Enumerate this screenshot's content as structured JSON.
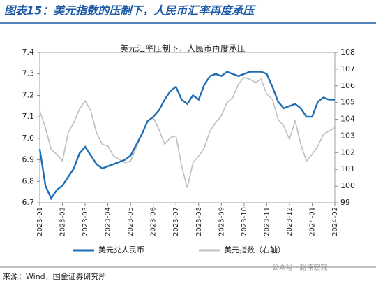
{
  "header": {
    "title": "图表15：美元指数的压制下，人民币汇率再度承压"
  },
  "chart_data": {
    "type": "line",
    "title": "美元汇率压制下，人民币再度承压",
    "categories": [
      "2023-01",
      null,
      null,
      null,
      "2023-02",
      null,
      null,
      null,
      "2023-03",
      null,
      null,
      null,
      "2023-04",
      null,
      null,
      null,
      "2023-05",
      null,
      null,
      null,
      "2023-06",
      null,
      null,
      null,
      "2023-07",
      null,
      null,
      null,
      "2023-08",
      null,
      null,
      null,
      "2023-09",
      null,
      null,
      null,
      "2023-10",
      null,
      null,
      null,
      "2023-11",
      null,
      null,
      null,
      "2023-12",
      null,
      null,
      null,
      "2024-01",
      null,
      null,
      null,
      "2024-02"
    ],
    "series": [
      {
        "name": "美元兑人民币",
        "color": "#1f6db5",
        "axis": "y",
        "values": [
          6.95,
          6.78,
          6.72,
          6.76,
          6.78,
          6.82,
          6.86,
          6.93,
          6.96,
          6.92,
          6.88,
          6.86,
          6.87,
          6.88,
          6.89,
          6.9,
          6.92,
          6.97,
          7.02,
          7.08,
          7.1,
          7.13,
          7.18,
          7.22,
          7.24,
          7.18,
          7.16,
          7.2,
          7.18,
          7.25,
          7.29,
          7.3,
          7.29,
          7.31,
          7.3,
          7.29,
          7.3,
          7.31,
          7.31,
          7.31,
          7.3,
          7.24,
          7.17,
          7.14,
          7.15,
          7.16,
          7.14,
          7.1,
          7.1,
          7.17,
          7.19,
          7.18,
          7.18
        ]
      },
      {
        "name": "美元指数（右轴）",
        "color": "#bfbfbf",
        "axis": "y2",
        "values": [
          104.5,
          103.5,
          102.2,
          101.9,
          101.5,
          103.2,
          103.8,
          104.6,
          105.1,
          104.5,
          103.2,
          102.5,
          102.4,
          101.8,
          101.6,
          101.4,
          101.5,
          102.3,
          103.1,
          103.9,
          104.1,
          103.4,
          102.5,
          102.9,
          103.0,
          101.2,
          99.9,
          101.4,
          101.8,
          102.3,
          103.3,
          103.8,
          104.2,
          105.0,
          105.3,
          106.1,
          106.5,
          106.4,
          106.2,
          106.4,
          105.5,
          105.2,
          104.0,
          103.6,
          102.8,
          103.9,
          102.5,
          101.5,
          101.9,
          102.4,
          103.1,
          103.3,
          103.5
        ]
      }
    ],
    "ylim": [
      6.7,
      7.4
    ],
    "yticks": [
      6.7,
      6.8,
      6.9,
      {
        "value": 7,
        "label": "7.0"
      },
      7.1,
      7.2,
      7.3,
      7.4
    ],
    "y2lim": [
      99,
      108
    ],
    "y2ticks": [
      99,
      100,
      101,
      102,
      103,
      104,
      105,
      106,
      107,
      108
    ],
    "legend": "bottom"
  },
  "footer": {
    "source": "来源：Wind，国金证券研究所",
    "watermark": "公众号 · 赵伟宏观"
  }
}
